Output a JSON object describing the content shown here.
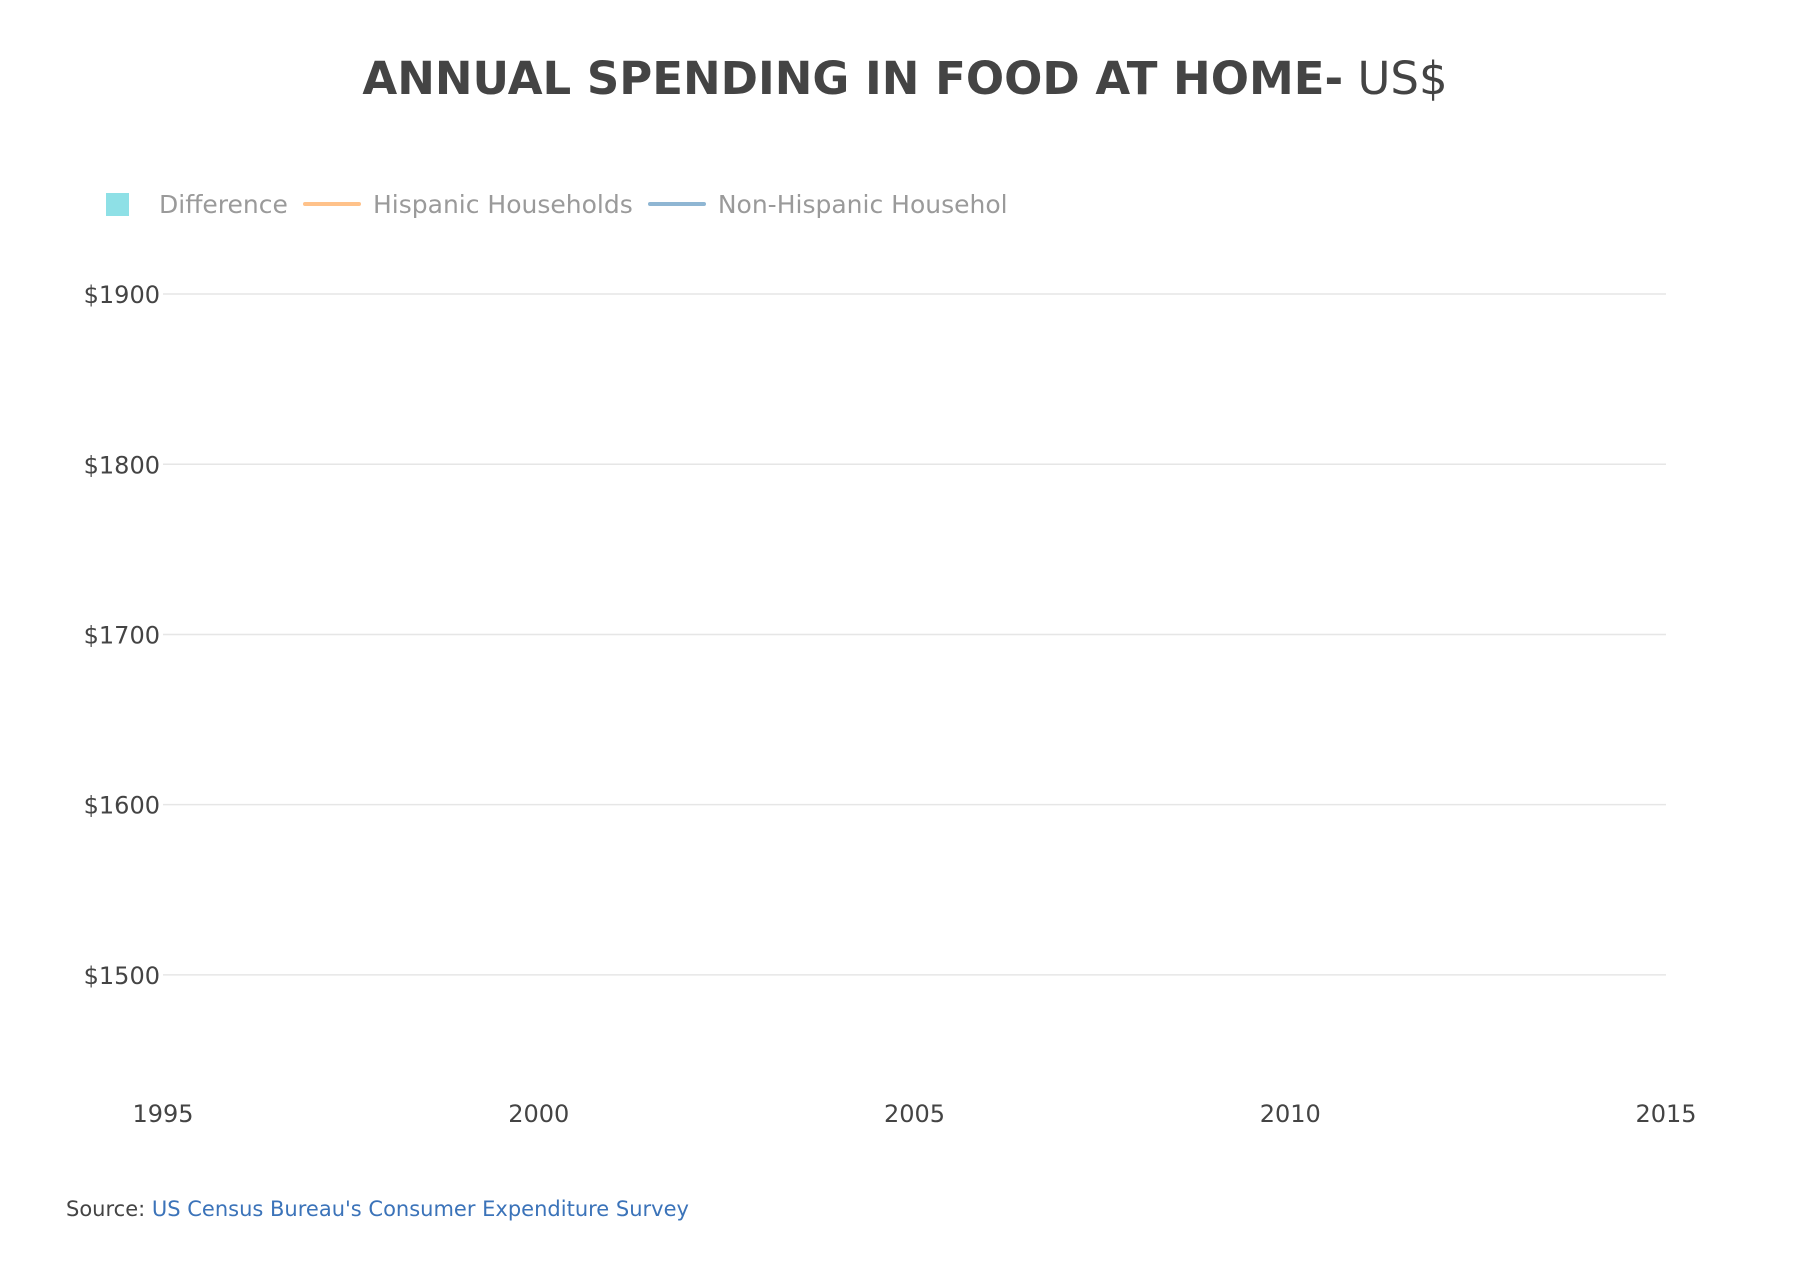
{
  "chart_data": {
    "type": "area",
    "title_bold": "ANNUAL SPENDING IN FOOD AT HOME-",
    "title_light": " US$",
    "legend": [
      {
        "name": "Difference",
        "swatch": "box",
        "color": "#8ee0e6"
      },
      {
        "name": "Hispanic Households",
        "swatch": "line",
        "color": "#ffc28a"
      },
      {
        "name": "Non-Hispanic Households",
        "swatch": "line",
        "color": "#8fb6d3"
      }
    ],
    "legend_placement": "top-left",
    "grid": true,
    "xlim": [
      1995,
      2015
    ],
    "ylim": [
      1450,
      1920
    ],
    "x_ticks": [
      1995,
      2000,
      2005,
      2010,
      2015
    ],
    "x_tick_labels": [
      "1995",
      "2000",
      "2005",
      "2010",
      "2015"
    ],
    "y_ticks": [
      1500,
      1600,
      1700,
      1800,
      1900
    ],
    "y_tick_labels": [
      "$1500",
      "$1600",
      "$1700",
      "$1800",
      "$1900"
    ],
    "series": []
  },
  "source": {
    "label": "Source: ",
    "link_text": "US Census Bureau's Consumer Expenditure Survey"
  }
}
